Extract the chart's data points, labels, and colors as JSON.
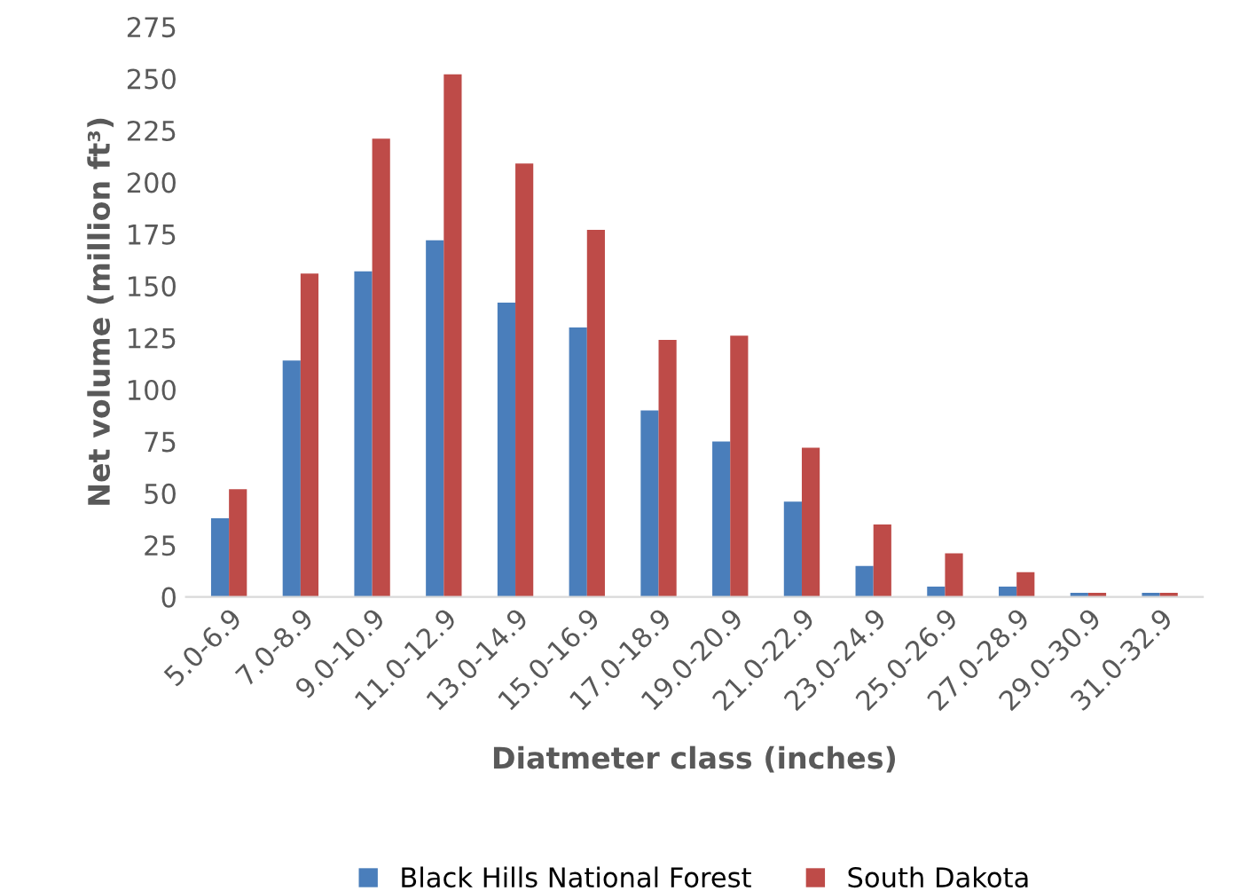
{
  "chart_data": {
    "type": "bar",
    "xlabel": "Diatmeter class (inches)",
    "ylabel": "Net volume (million ft³)",
    "categories": [
      "5.0-6.9",
      "7.0-8.9",
      "9.0-10.9",
      "11.0-12.9",
      "13.0-14.9",
      "15.0-16.9",
      "17.0-18.9",
      "19.0-20.9",
      "21.0-22.9",
      "23.0-24.9",
      "25.0-26.9",
      "27.0-28.9",
      "29.0-30.9",
      "31.0-32.9"
    ],
    "series": [
      {
        "name": "Black Hills National Forest",
        "color": "#4a7ebb",
        "values": [
          38,
          114,
          157,
          172,
          142,
          130,
          90,
          75,
          46,
          15,
          5,
          5,
          2,
          2
        ]
      },
      {
        "name": "South Dakota",
        "color": "#be4b48",
        "values": [
          52,
          156,
          221,
          252,
          209,
          177,
          124,
          126,
          72,
          35,
          21,
          12,
          2,
          2
        ]
      }
    ],
    "ylim": [
      0,
      275
    ],
    "yticks": [
      0,
      25,
      50,
      75,
      100,
      125,
      150,
      175,
      200,
      225,
      250,
      275
    ],
    "grid": false,
    "legend": "bottom"
  }
}
